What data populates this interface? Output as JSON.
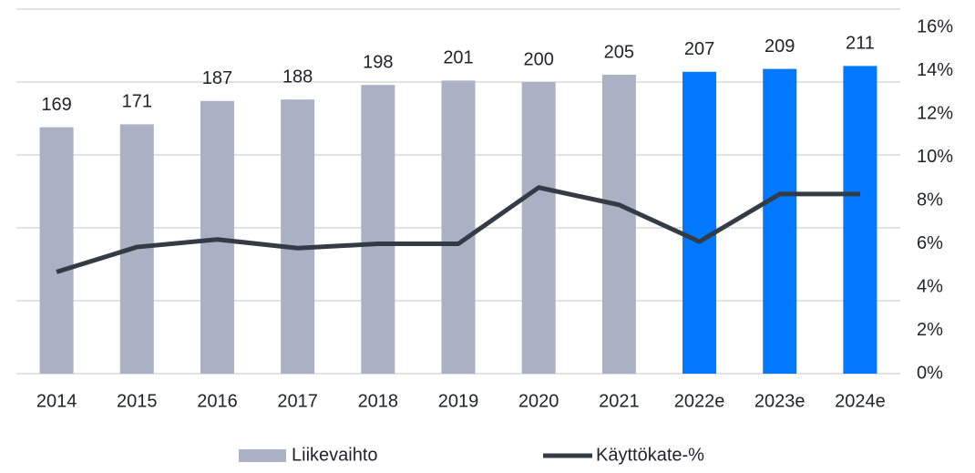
{
  "chart_data": {
    "type": "bar_line",
    "categories": [
      "2014",
      "2015",
      "2016",
      "2017",
      "2018",
      "2019",
      "2020",
      "2021",
      "2022e",
      "2023e",
      "2024e"
    ],
    "series": [
      {
        "name": "Liikevaihto",
        "type": "bar",
        "color": "#aab1c4",
        "colors": [
          "#aab1c4",
          "#aab1c4",
          "#aab1c4",
          "#aab1c4",
          "#aab1c4",
          "#aab1c4",
          "#aab1c4",
          "#aab1c4",
          "#0078ff",
          "#0078ff",
          "#0078ff"
        ],
        "values": [
          169,
          171,
          187,
          188,
          198,
          201,
          200,
          205,
          207,
          209,
          211
        ]
      },
      {
        "name": "Käyttökate-%",
        "type": "line",
        "axis": "y2",
        "color": "#333c45",
        "values": [
          4.7,
          5.85,
          6.2,
          5.8,
          6.0,
          6.0,
          8.6,
          7.8,
          6.1,
          8.3,
          8.3
        ]
      }
    ],
    "ylim": [
      0,
      250
    ],
    "yticks": [
      0,
      50,
      100,
      150,
      200,
      250
    ],
    "y2lim": [
      0,
      16
    ],
    "y2ticks": [
      {
        "value": 0,
        "label": "0%"
      },
      {
        "value": 2,
        "label": "2%"
      },
      {
        "value": 4,
        "label": "4%"
      },
      {
        "value": 6,
        "label": "6%"
      },
      {
        "value": 8,
        "label": "8%"
      },
      {
        "value": 10,
        "label": "10%"
      },
      {
        "value": 12,
        "label": "12%"
      },
      {
        "value": 14,
        "label": "14%"
      },
      {
        "value": 16,
        "label": "16%"
      }
    ],
    "grid": true,
    "legend": "bottom"
  }
}
